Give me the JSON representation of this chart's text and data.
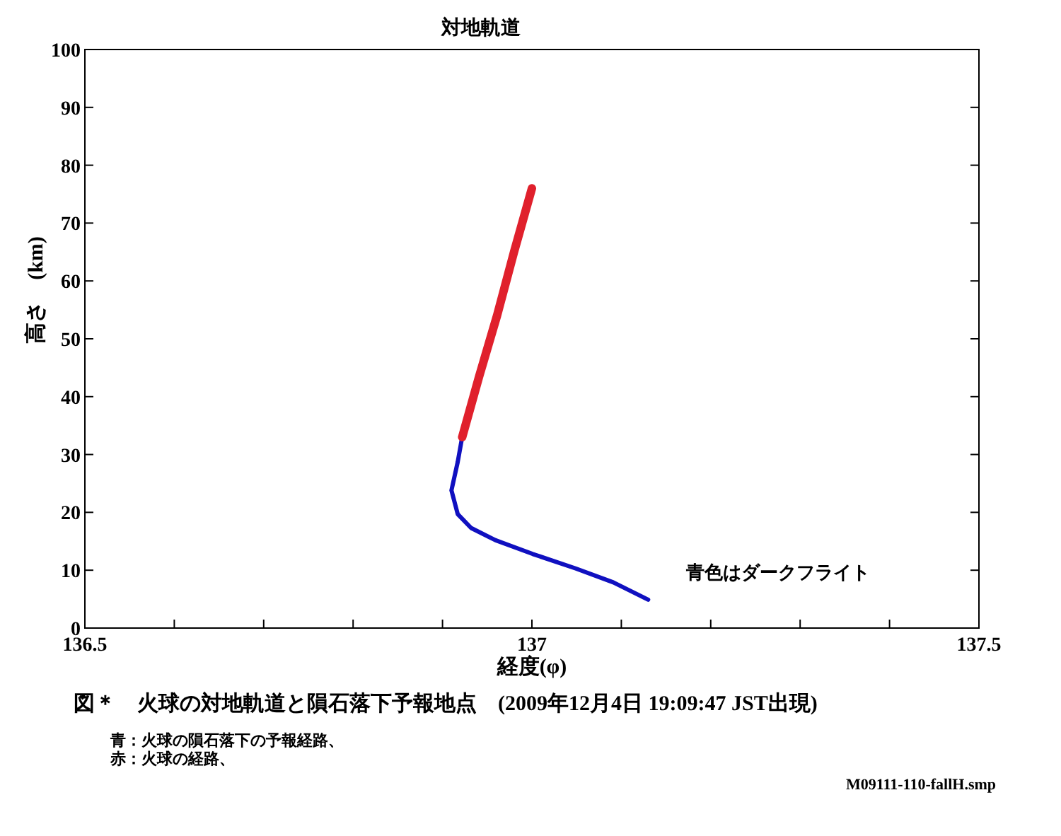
{
  "chart_data": {
    "type": "line",
    "title": "対地軌道",
    "xlabel": "経度(φ)",
    "ylabel": "高さ　(km)",
    "xlim": [
      136.5,
      137.5
    ],
    "ylim": [
      0,
      100
    ],
    "xticks": [
      136.5,
      {
        "value": 136.6,
        "label": null
      },
      {
        "value": 136.7,
        "label": null
      },
      {
        "value": 136.8,
        "label": null
      },
      {
        "value": 136.9,
        "label": null
      },
      137,
      {
        "value": 137.1,
        "label": null
      },
      {
        "value": 137.2,
        "label": null
      },
      {
        "value": 137.3,
        "label": null
      },
      {
        "value": 137.4,
        "label": null
      },
      137.5
    ],
    "yticks": [
      0,
      10,
      20,
      30,
      40,
      50,
      60,
      70,
      80,
      90,
      100
    ],
    "grid": false,
    "series": [
      {
        "color": "#1010c0",
        "x": [
          136.922,
          136.917,
          136.91,
          136.917,
          136.932,
          136.959,
          137.001,
          137.049,
          137.091,
          137.13
        ],
        "values": [
          33,
          28.7,
          23.8,
          19.7,
          17.3,
          15.2,
          12.8,
          10.3,
          7.9,
          4.9
        ]
      },
      {
        "color": "#e0202c",
        "x": [
          136.922,
          136.941,
          136.961,
          136.98,
          137.0
        ],
        "values": [
          33,
          43.5,
          54,
          65,
          76
        ]
      }
    ],
    "annotations": [
      "青色はダークフライト",
      "図＊　火球の対地軌道と隕石落下予報地点　(2009年12月4日 19:09:47 JST出現)",
      "青：火球の隕石落下の予報経路、",
      "赤：火球の経路、",
      "M09111-110-fallH.smp"
    ]
  }
}
